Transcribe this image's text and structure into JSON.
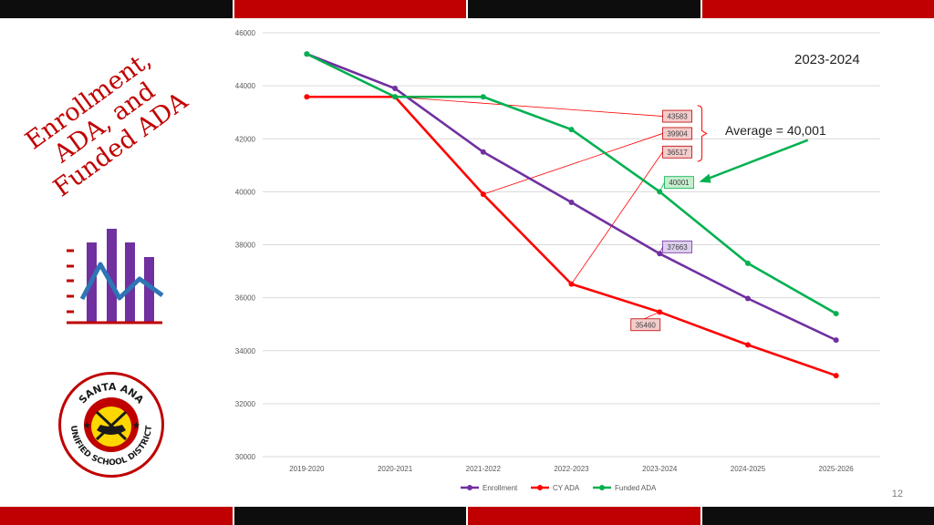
{
  "slide": {
    "title_lines": [
      "Enrollment,",
      "ADA, and",
      "Funded ADA"
    ],
    "year_label": "2023-2024",
    "average_label": "Average = 40,001",
    "page_number": "12"
  },
  "colors": {
    "accent_red": "#c00000",
    "band_dark": "#0d0d0d",
    "icon_purple": "#7030a0",
    "icon_blue": "#2e75b6"
  },
  "logo": {
    "text_top": "SANTA ANA",
    "text_bottom": "UNIFIED SCHOOL DISTRICT",
    "icon": "lamp-of-learning-seal"
  },
  "chart_data": {
    "type": "line",
    "categories": [
      "2019-2020",
      "2020-2021",
      "2021-2022",
      "2022-2023",
      "2023-2024",
      "2024-2025",
      "2025-2026"
    ],
    "ylim": [
      30000,
      46000
    ],
    "yticks": [
      30000,
      32000,
      34000,
      36000,
      38000,
      40000,
      42000,
      44000,
      46000
    ],
    "grid": true,
    "legend_position": "bottom",
    "series": [
      {
        "name": "Enrollment",
        "color": "#7030a0",
        "values": [
          45200,
          43900,
          41500,
          39600,
          37663,
          35970,
          34400
        ]
      },
      {
        "name": "CY ADA",
        "color": "#ff0000",
        "values": [
          43583,
          43583,
          39904,
          36517,
          35460,
          34220,
          33060
        ]
      },
      {
        "name": "Funded ADA",
        "color": "#00b050",
        "values": [
          45200,
          43583,
          43583,
          42350,
          40001,
          37300,
          35400
        ]
      }
    ],
    "callouts": [
      {
        "text": "43583",
        "kind": "red",
        "series": 1,
        "point": 1
      },
      {
        "text": "39904",
        "kind": "red",
        "series": 1,
        "point": 2
      },
      {
        "text": "36517",
        "kind": "red",
        "series": 1,
        "point": 3
      },
      {
        "text": "40001",
        "kind": "green",
        "series": 2,
        "point": 4
      },
      {
        "text": "37663",
        "kind": "purple",
        "series": 0,
        "point": 4
      },
      {
        "text": "35460",
        "kind": "red",
        "series": 1,
        "point": 4
      }
    ]
  }
}
